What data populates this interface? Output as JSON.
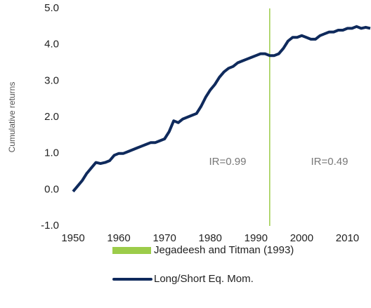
{
  "chart_data": {
    "type": "line",
    "y_label": "Cumulative returns",
    "annotations": [
      "IR=0.99",
      "IR=0.49"
    ],
    "xlim": [
      1950,
      2015
    ],
    "xticks": [
      1950,
      1960,
      1970,
      1980,
      1990,
      2000,
      2010
    ],
    "ylim": [
      -1,
      5
    ],
    "yticks": [
      {
        "value": -1,
        "label": "-1.0"
      },
      {
        "value": 0,
        "label": "0.0"
      },
      {
        "value": 1,
        "label": "1.0"
      },
      {
        "value": 2,
        "label": "2.0"
      },
      {
        "value": 3,
        "label": "3.0"
      },
      {
        "value": 4,
        "label": "4.0"
      },
      {
        "value": 5,
        "label": "5.0"
      }
    ],
    "grid": false,
    "markers": [
      {
        "name": "Jegadeesh and Titman (1993)",
        "color": "#9ccc4a",
        "x": 1993
      }
    ],
    "series": [
      {
        "name": "Long/Short Eq. Mom.",
        "color": "#0f2a5c",
        "x": [
          1950,
          1951,
          1952,
          1953,
          1954,
          1955,
          1956,
          1957,
          1958,
          1959,
          1960,
          1961,
          1962,
          1963,
          1964,
          1965,
          1966,
          1967,
          1968,
          1969,
          1970,
          1971,
          1972,
          1973,
          1974,
          1975,
          1976,
          1977,
          1978,
          1979,
          1980,
          1981,
          1982,
          1983,
          1984,
          1985,
          1986,
          1987,
          1988,
          1989,
          1990,
          1991,
          1992,
          1993,
          1994,
          1995,
          1996,
          1997,
          1998,
          1999,
          2000,
          2001,
          2002,
          2003,
          2004,
          2005,
          2006,
          2007,
          2008,
          2009,
          2010,
          2011,
          2012,
          2013,
          2014,
          2015
        ],
        "values": [
          -0.05,
          0.1,
          0.25,
          0.45,
          0.6,
          0.75,
          0.72,
          0.75,
          0.8,
          0.95,
          1.0,
          1.0,
          1.05,
          1.1,
          1.15,
          1.2,
          1.25,
          1.3,
          1.3,
          1.35,
          1.4,
          1.6,
          1.9,
          1.85,
          1.95,
          2.0,
          2.05,
          2.1,
          2.3,
          2.55,
          2.75,
          2.9,
          3.1,
          3.25,
          3.35,
          3.4,
          3.5,
          3.55,
          3.6,
          3.65,
          3.7,
          3.75,
          3.75,
          3.7,
          3.7,
          3.75,
          3.9,
          4.1,
          4.2,
          4.2,
          4.25,
          4.2,
          4.15,
          4.15,
          4.25,
          4.3,
          4.35,
          4.35,
          4.4,
          4.4,
          4.45,
          4.45,
          4.5,
          4.45,
          4.48,
          4.45
        ]
      }
    ]
  }
}
